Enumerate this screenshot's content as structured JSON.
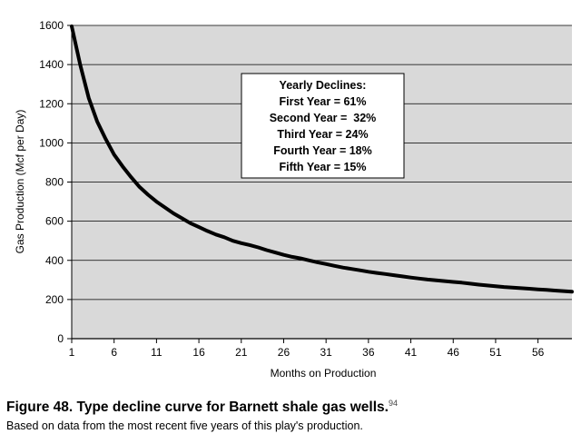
{
  "chart_data": {
    "type": "line",
    "xlabel": "Months on Production",
    "ylabel": "Gas Production (Mcf per Day)",
    "xlim": [
      1,
      60
    ],
    "ylim": [
      0,
      1600
    ],
    "x_ticks": [
      1,
      6,
      11,
      16,
      21,
      26,
      31,
      36,
      41,
      46,
      51,
      56
    ],
    "y_ticks": [
      0,
      200,
      400,
      600,
      800,
      1000,
      1200,
      1400,
      1600
    ],
    "grid": "horizontal",
    "series": [
      {
        "x": [
          1,
          2,
          3,
          4,
          5,
          6,
          7,
          8,
          9,
          10,
          11,
          12,
          13,
          14,
          15,
          16,
          17,
          18,
          19,
          20,
          21,
          22,
          23,
          24,
          25,
          26,
          27,
          28,
          29,
          30,
          31,
          32,
          33,
          34,
          35,
          36,
          37,
          38,
          39,
          40,
          41,
          42,
          43,
          44,
          45,
          46,
          47,
          48,
          49,
          50,
          51,
          52,
          53,
          54,
          55,
          56,
          57,
          58,
          59,
          60
        ],
        "y": [
          1620,
          1400,
          1230,
          1110,
          1020,
          940,
          880,
          825,
          775,
          735,
          700,
          670,
          640,
          615,
          590,
          570,
          550,
          532,
          518,
          500,
          488,
          478,
          466,
          452,
          440,
          428,
          418,
          410,
          400,
          390,
          381,
          372,
          363,
          356,
          349,
          342,
          336,
          330,
          324,
          318,
          312,
          307,
          302,
          298,
          294,
          290,
          286,
          281,
          276,
          272,
          268,
          264,
          261,
          258,
          255,
          252,
          249,
          246,
          243,
          240
        ]
      }
    ],
    "annotation": {
      "lines": [
        "Yearly Declines:",
        "First Year = 61%",
        "Second Year =  32%",
        "Third Year = 24%",
        "Fourth Year = 18%",
        "Fifth Year = 15%"
      ]
    },
    "colors": {
      "plot_background": "#d9d9d9",
      "line": "#000000",
      "grid": "#000000"
    }
  },
  "caption": {
    "title": "Figure 48. Type decline curve for Barnett shale gas wells.",
    "footnote": "94",
    "subtitle": "Based on data from the most recent five years of this play's production."
  }
}
